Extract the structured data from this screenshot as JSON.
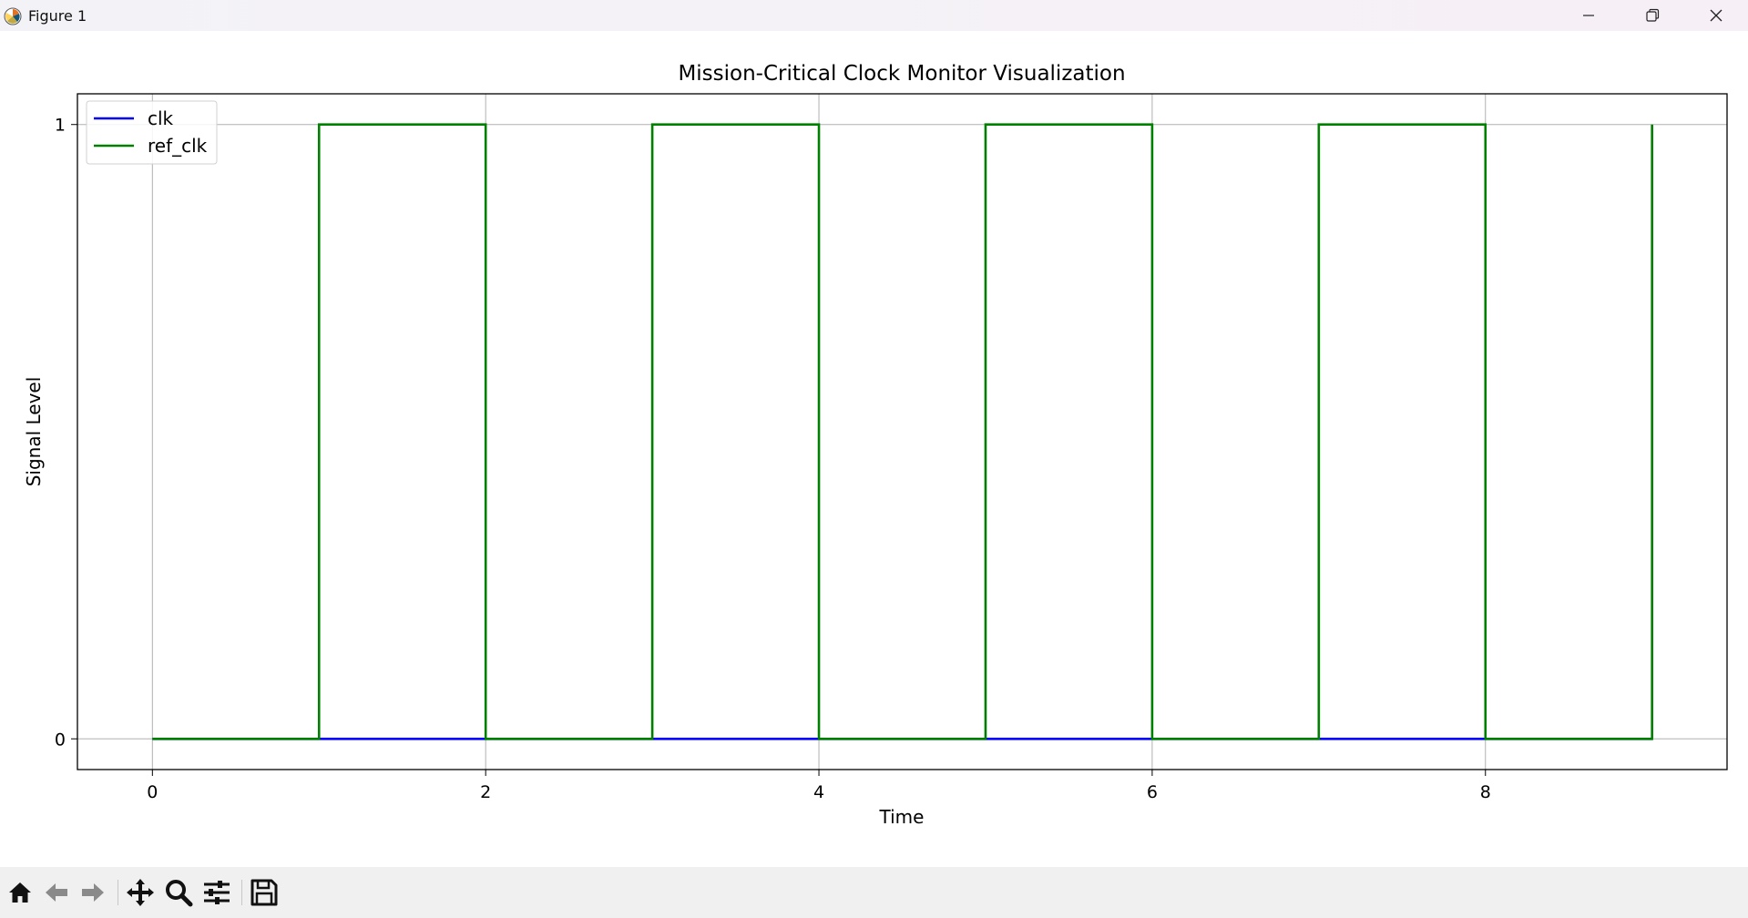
{
  "window": {
    "title": "Figure 1",
    "icons": [
      "matplotlib-logo-icon",
      "minimize-icon",
      "restore-icon",
      "close-icon"
    ]
  },
  "toolbar": {
    "buttons": [
      {
        "name": "home",
        "icon": "home-icon"
      },
      {
        "name": "back",
        "icon": "back-arrow-icon"
      },
      {
        "name": "forward",
        "icon": "forward-arrow-icon"
      },
      {
        "name": "pan",
        "icon": "move-icon"
      },
      {
        "name": "zoom",
        "icon": "zoom-icon"
      },
      {
        "name": "configure-subplots",
        "icon": "sliders-icon"
      },
      {
        "name": "save",
        "icon": "save-icon"
      }
    ]
  },
  "chart_data": {
    "type": "line",
    "title": "Mission-Critical Clock Monitor Visualization",
    "xlabel": "Time",
    "ylabel": "Signal Level",
    "xlim": [
      -0.45,
      9.45
    ],
    "ylim": [
      -0.05,
      1.05
    ],
    "xticks": [
      0,
      2,
      4,
      6,
      8
    ],
    "yticks": [
      0,
      1
    ],
    "grid": true,
    "legend_position": "top-left",
    "series": [
      {
        "name": "clk",
        "color": "#0000ff",
        "step": "post",
        "x": [
          0,
          1,
          2,
          3,
          4,
          5,
          6,
          7,
          8,
          9
        ],
        "y": [
          0,
          0,
          0,
          0,
          0,
          0,
          0,
          0,
          0,
          0
        ]
      },
      {
        "name": "ref_clk",
        "color": "#008000",
        "step": "post",
        "x": [
          0,
          1,
          2,
          3,
          4,
          5,
          6,
          7,
          8,
          9
        ],
        "y": [
          0,
          1,
          0,
          1,
          0,
          1,
          0,
          1,
          0,
          1
        ]
      }
    ]
  }
}
